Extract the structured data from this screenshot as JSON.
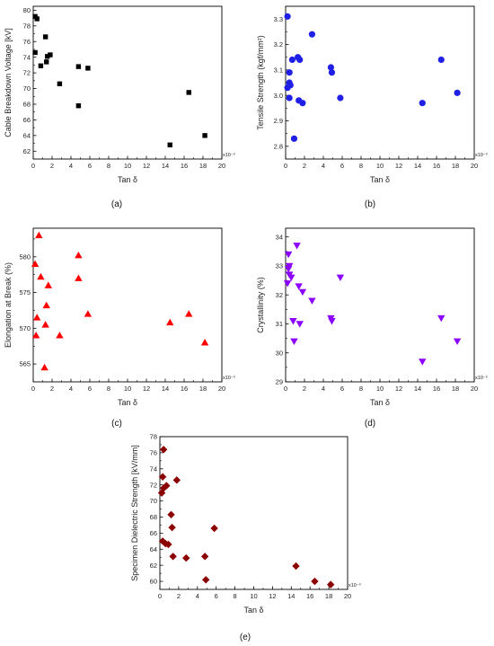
{
  "chart_data": [
    {
      "type": "scatter",
      "panel_label": "(a)",
      "xlabel": "Tan δ",
      "ylabel": "Cable Breakdown Voltage [kV]",
      "x_multiplier": "x10⁻³",
      "xlim": [
        0,
        20
      ],
      "ylim": [
        61,
        80.5
      ],
      "xticks": [
        0,
        2,
        4,
        6,
        8,
        10,
        12,
        14,
        16,
        18,
        20
      ],
      "yticks": [
        62,
        64,
        66,
        68,
        70,
        72,
        74,
        76,
        78,
        80
      ],
      "marker": "square",
      "color": "#000000",
      "grid": false,
      "x": [
        0.2,
        0.4,
        0.2,
        0.8,
        1.3,
        1.4,
        1.5,
        1.8,
        2.8,
        4.8,
        4.8,
        5.8,
        14.5,
        16.5,
        18.2
      ],
      "y": [
        79.2,
        78.9,
        74.6,
        72.9,
        76.6,
        73.4,
        74.1,
        74.3,
        70.6,
        72.8,
        67.8,
        72.6,
        62.8,
        69.5,
        64.0
      ]
    },
    {
      "type": "scatter",
      "panel_label": "(b)",
      "xlabel": "Tan δ",
      "ylabel": "Tensile Strength (kgf/mm²)",
      "x_multiplier": "x10⁻³",
      "xlim": [
        0,
        20
      ],
      "ylim": [
        2.75,
        3.35
      ],
      "xticks": [
        0,
        2,
        4,
        6,
        8,
        10,
        12,
        14,
        16,
        18,
        20
      ],
      "yticks": [
        2.8,
        2.9,
        3.0,
        3.1,
        3.2,
        3.3
      ],
      "marker": "circle",
      "color": "#1f1fe6",
      "grid": false,
      "x": [
        0.2,
        0.2,
        0.4,
        0.4,
        0.4,
        0.5,
        0.7,
        0.9,
        1.3,
        1.4,
        1.5,
        1.8,
        2.8,
        4.8,
        4.9,
        5.8,
        14.5,
        16.5,
        18.2
      ],
      "y": [
        3.31,
        3.03,
        3.09,
        3.05,
        2.99,
        3.04,
        3.14,
        2.83,
        3.15,
        2.98,
        3.14,
        2.97,
        3.24,
        3.11,
        3.09,
        2.99,
        2.97,
        3.14,
        3.01
      ]
    },
    {
      "type": "scatter",
      "panel_label": "(c)",
      "xlabel": "Tan δ",
      "ylabel": "Elongation at Break (%)",
      "x_multiplier": "x10⁻³",
      "xlim": [
        0,
        20
      ],
      "ylim": [
        562.5,
        584
      ],
      "xticks": [
        0,
        2,
        4,
        6,
        8,
        10,
        12,
        14,
        16,
        18,
        20
      ],
      "yticks": [
        565,
        570,
        575,
        580
      ],
      "marker": "triangle-up",
      "color": "#ff0000",
      "grid": false,
      "x": [
        0.2,
        0.3,
        0.4,
        0.6,
        0.8,
        1.2,
        1.3,
        1.4,
        1.6,
        2.8,
        4.8,
        4.8,
        5.8,
        14.5,
        16.5,
        18.2
      ],
      "y": [
        579.0,
        569.0,
        571.5,
        583.0,
        577.2,
        564.5,
        570.5,
        573.2,
        576.0,
        569.0,
        580.2,
        577.0,
        572.0,
        570.8,
        572.0,
        568.0
      ]
    },
    {
      "type": "scatter",
      "panel_label": "(d)",
      "xlabel": "Tan δ",
      "ylabel": "Crystallinity (%)",
      "x_multiplier": "x10⁻³",
      "xlim": [
        0,
        20
      ],
      "ylim": [
        29,
        34.3
      ],
      "xticks": [
        0,
        2,
        4,
        6,
        8,
        10,
        12,
        14,
        16,
        18,
        20
      ],
      "yticks": [
        29,
        30,
        31,
        32,
        33,
        34
      ],
      "marker": "triangle-down",
      "color": "#8b00ff",
      "grid": false,
      "x": [
        0.2,
        0.3,
        0.3,
        0.4,
        0.4,
        0.6,
        0.8,
        0.9,
        1.2,
        1.4,
        1.5,
        1.8,
        2.8,
        4.8,
        4.9,
        5.8,
        14.5,
        16.5,
        18.2
      ],
      "y": [
        32.4,
        33.4,
        32.9,
        32.7,
        33.0,
        32.6,
        31.1,
        30.4,
        33.7,
        32.3,
        31.0,
        32.1,
        31.8,
        31.2,
        31.1,
        32.6,
        29.7,
        31.2,
        30.4
      ]
    },
    {
      "type": "scatter",
      "panel_label": "(e)",
      "xlabel": "Tan δ",
      "ylabel": "Specimen Dielectric Strength [kV/mm]",
      "x_multiplier": "x10⁻³",
      "xlim": [
        0,
        20
      ],
      "ylim": [
        59,
        78
      ],
      "xticks": [
        0,
        2,
        4,
        6,
        8,
        10,
        12,
        14,
        16,
        18,
        20
      ],
      "yticks": [
        60,
        62,
        64,
        66,
        68,
        70,
        72,
        74,
        76,
        78
      ],
      "marker": "diamond",
      "color": "#8b0000",
      "grid": false,
      "x": [
        0.2,
        0.3,
        0.3,
        0.4,
        0.4,
        0.6,
        0.7,
        0.9,
        1.2,
        1.3,
        1.4,
        1.8,
        2.8,
        4.8,
        4.9,
        5.8,
        14.5,
        16.5,
        18.2
      ],
      "y": [
        71.0,
        65.0,
        73.0,
        71.6,
        76.4,
        64.7,
        71.9,
        64.6,
        68.3,
        66.7,
        63.1,
        72.6,
        62.9,
        63.1,
        60.2,
        66.6,
        61.9,
        60.0,
        59.6
      ]
    }
  ]
}
